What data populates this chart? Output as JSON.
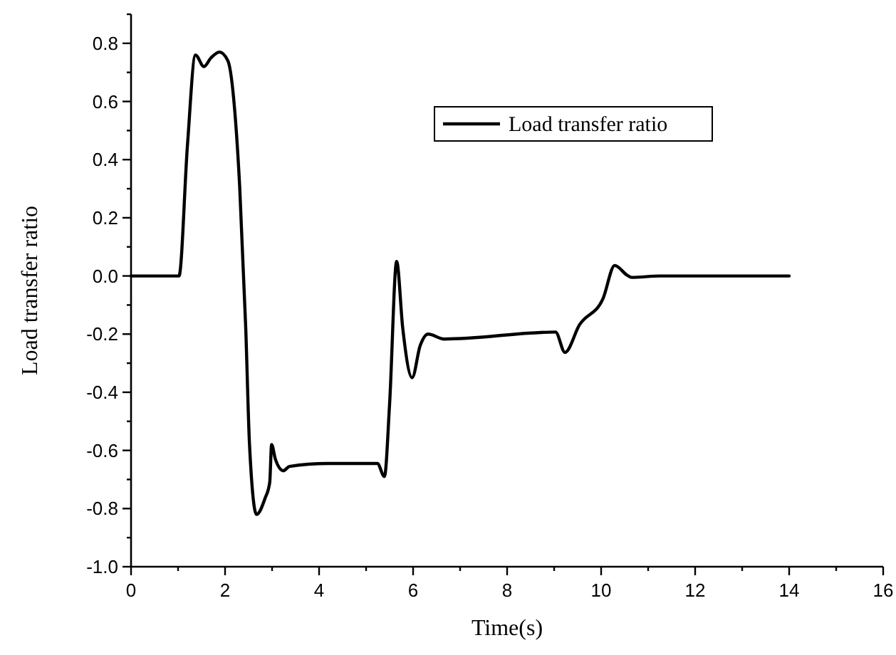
{
  "chart_data": {
    "type": "line",
    "xlabel": "Time(s)",
    "ylabel": "Load transfer ratio",
    "xlim": [
      0,
      16
    ],
    "ylim": [
      -1.0,
      0.9
    ],
    "xticks": [
      0,
      {
        "value": 1,
        "label": null
      },
      2,
      {
        "value": 3,
        "label": null
      },
      4,
      {
        "value": 5,
        "label": null
      },
      6,
      {
        "value": 7,
        "label": null
      },
      8,
      {
        "value": 9,
        "label": null
      },
      10,
      {
        "value": 11,
        "label": null
      },
      12,
      {
        "value": 13,
        "label": null
      },
      14,
      {
        "value": 15,
        "label": null
      },
      16
    ],
    "yticks": [
      {
        "value": -1.0,
        "label": "-1.0"
      },
      {
        "value": -0.9,
        "label": null
      },
      {
        "value": -0.8,
        "label": "-0.8"
      },
      {
        "value": -0.7,
        "label": null
      },
      {
        "value": -0.6,
        "label": "-0.6"
      },
      {
        "value": -0.5,
        "label": null
      },
      {
        "value": -0.4,
        "label": "-0.4"
      },
      {
        "value": -0.3,
        "label": null
      },
      {
        "value": -0.2,
        "label": "-0.2"
      },
      {
        "value": -0.1,
        "label": null
      },
      {
        "value": 0,
        "label": "0.0"
      },
      {
        "value": 0.1,
        "label": null
      },
      {
        "value": 0.2,
        "label": "0.2"
      },
      {
        "value": 0.3,
        "label": null
      },
      {
        "value": 0.4,
        "label": "0.4"
      },
      {
        "value": 0.5,
        "label": null
      },
      {
        "value": 0.6,
        "label": "0.6"
      },
      {
        "value": 0.7,
        "label": null
      },
      {
        "value": 0.8,
        "label": "0.8"
      },
      {
        "value": 0.9,
        "label": null
      }
    ],
    "grid": false,
    "legend": "top right",
    "marker": "none",
    "line_style": "solid",
    "series": [
      {
        "name": "Load transfer ratio",
        "color": "#000000",
        "x": [
          0,
          1.02,
          1.2,
          1.37,
          1.55,
          1.7,
          1.88,
          2.06,
          2.21,
          2.31,
          2.44,
          2.52,
          2.67,
          2.85,
          2.95,
          2.99,
          3.07,
          3.24,
          3.37,
          4.18,
          5.24,
          5.39,
          5.5,
          5.65,
          5.78,
          5.98,
          6.15,
          6.32,
          6.66,
          9.03,
          9.23,
          9.54,
          10.04,
          10.29,
          10.55,
          10.65,
          11.25,
          14
        ],
        "values": [
          0,
          0,
          0.45,
          0.76,
          0.72,
          0.75,
          0.77,
          0.74,
          0.56,
          0.31,
          -0.18,
          -0.58,
          -0.82,
          -0.765,
          -0.71,
          -0.58,
          -0.63,
          -0.67,
          -0.655,
          -0.645,
          -0.645,
          -0.69,
          -0.44,
          0.05,
          -0.18,
          -0.35,
          -0.24,
          -0.2,
          -0.217,
          -0.193,
          -0.263,
          -0.168,
          -0.078,
          0.036,
          0.003,
          -0.005,
          0,
          0
        ]
      }
    ]
  }
}
